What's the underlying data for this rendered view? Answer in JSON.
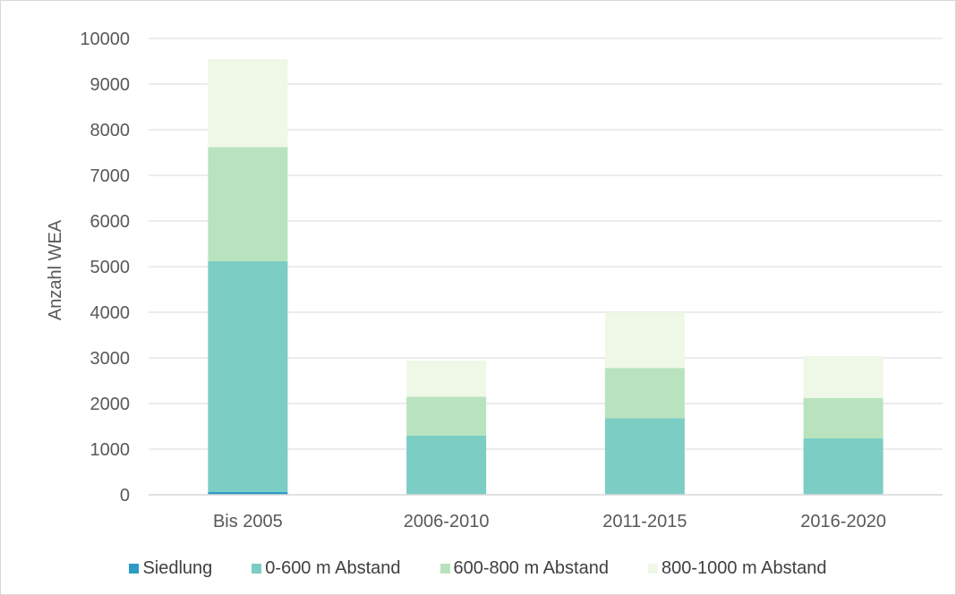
{
  "chart_data": {
    "type": "bar",
    "stacked": true,
    "title": "",
    "xlabel": "",
    "ylabel": "Anzahl WEA",
    "ylim": [
      0,
      10000
    ],
    "yticks": [
      "0",
      "1000",
      "2000",
      "3000",
      "4000",
      "5000",
      "6000",
      "7000",
      "8000",
      "9000",
      "10000"
    ],
    "ytick_values": [
      0,
      1000,
      2000,
      3000,
      4000,
      5000,
      6000,
      7000,
      8000,
      9000,
      10000
    ],
    "grid": true,
    "legend_position": "bottom",
    "categories": [
      "Bis 2005",
      "2006-2010",
      "2011-2015",
      "2016-2020"
    ],
    "series": [
      {
        "name": "Siedlung",
        "color": "#2e9bc6",
        "values": [
          60,
          0,
          0,
          0
        ]
      },
      {
        "name": "0-600 m Abstand",
        "color": "#7ccdc4",
        "values": [
          5060,
          1300,
          1680,
          1240
        ]
      },
      {
        "name": "600-800 m Abstand",
        "color": "#b8e3be",
        "values": [
          2500,
          850,
          1100,
          880
        ]
      },
      {
        "name": "800-1000 m Abstand",
        "color": "#eff7e7",
        "values": [
          1930,
          790,
          1220,
          920
        ]
      }
    ]
  }
}
